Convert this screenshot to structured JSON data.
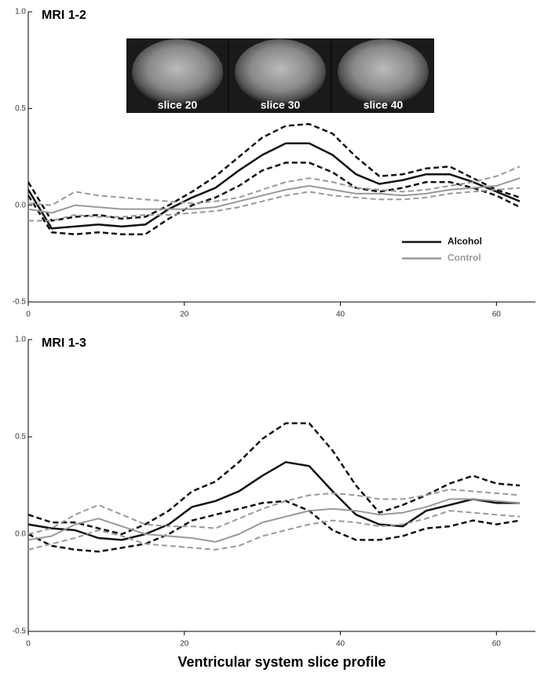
{
  "chart_data": [
    {
      "type": "line",
      "title": "MRI 1-2",
      "image_labels": [
        "slice 20",
        "slice 30",
        "slice 40"
      ],
      "x": [
        0,
        3,
        6,
        9,
        12,
        15,
        18,
        21,
        24,
        27,
        30,
        33,
        36,
        39,
        42,
        45,
        48,
        51,
        54,
        57,
        60,
        63
      ],
      "xlim": [
        0,
        65
      ],
      "xticks": [
        0,
        20,
        40,
        60
      ],
      "ylim": [
        -0.5,
        1.0
      ],
      "yticks": [
        -0.5,
        {
          "value": 0,
          "label": "0.0"
        },
        0.5,
        {
          "value": 1,
          "label": "1.0"
        }
      ],
      "legend": "right",
      "series": [
        {
          "name": "Alcohol",
          "color": "#111111",
          "values": [
            0.08,
            -0.12,
            -0.11,
            -0.1,
            -0.11,
            -0.1,
            -0.02,
            0.04,
            0.09,
            0.18,
            0.26,
            0.32,
            0.32,
            0.26,
            0.16,
            0.11,
            0.13,
            0.16,
            0.16,
            0.12,
            0.07,
            0.02
          ],
          "upper": [
            0.12,
            -0.08,
            -0.06,
            -0.05,
            -0.07,
            -0.06,
            0.0,
            0.07,
            0.15,
            0.25,
            0.35,
            0.41,
            0.42,
            0.37,
            0.25,
            0.15,
            0.16,
            0.19,
            0.2,
            0.14,
            0.08,
            0.04
          ],
          "lower": [
            0.05,
            -0.14,
            -0.15,
            -0.14,
            -0.15,
            -0.15,
            -0.07,
            0.0,
            0.04,
            0.1,
            0.18,
            0.22,
            0.22,
            0.17,
            0.09,
            0.07,
            0.09,
            0.12,
            0.12,
            0.09,
            0.05,
            -0.01
          ]
        },
        {
          "name": "Control",
          "color": "#999999",
          "values": [
            -0.02,
            -0.04,
            0.0,
            -0.01,
            -0.02,
            -0.02,
            -0.02,
            -0.02,
            -0.01,
            0.02,
            0.05,
            0.08,
            0.1,
            0.08,
            0.06,
            0.06,
            0.05,
            0.06,
            0.08,
            0.09,
            0.1,
            0.14
          ],
          "upper": [
            0.01,
            0.0,
            0.07,
            0.05,
            0.04,
            0.03,
            0.02,
            0.01,
            0.02,
            0.04,
            0.08,
            0.12,
            0.14,
            0.12,
            0.09,
            0.08,
            0.07,
            0.08,
            0.1,
            0.12,
            0.15,
            0.2
          ],
          "lower": [
            -0.08,
            -0.08,
            -0.05,
            -0.06,
            -0.06,
            -0.05,
            -0.05,
            -0.04,
            -0.03,
            -0.01,
            0.02,
            0.05,
            0.07,
            0.05,
            0.04,
            0.03,
            0.03,
            0.04,
            0.06,
            0.07,
            0.08,
            0.09
          ]
        }
      ]
    },
    {
      "type": "line",
      "title": "MRI 1-3",
      "xlabel": "Ventricular system slice profile",
      "x": [
        0,
        3,
        6,
        9,
        12,
        15,
        18,
        21,
        24,
        27,
        30,
        33,
        36,
        39,
        42,
        45,
        48,
        51,
        54,
        57,
        60,
        63
      ],
      "xlim": [
        0,
        65
      ],
      "xticks": [
        0,
        20,
        40,
        60
      ],
      "ylim": [
        -0.5,
        1.0
      ],
      "yticks": [
        -0.5,
        {
          "value": 0,
          "label": "0.0"
        },
        0.5,
        {
          "value": 1,
          "label": "1.0"
        }
      ],
      "series": [
        {
          "color": "#111111",
          "values": [
            0.05,
            0.03,
            0.02,
            -0.02,
            -0.03,
            0.0,
            0.05,
            0.14,
            0.17,
            0.22,
            0.3,
            0.37,
            0.35,
            0.22,
            0.1,
            0.05,
            0.04,
            0.12,
            0.15,
            0.18,
            0.16,
            0.16
          ],
          "upper": [
            0.1,
            0.06,
            0.06,
            0.03,
            0.0,
            0.05,
            0.12,
            0.22,
            0.27,
            0.37,
            0.49,
            0.57,
            0.57,
            0.43,
            0.25,
            0.11,
            0.15,
            0.2,
            0.26,
            0.3,
            0.26,
            0.25
          ],
          "lower": [
            0.0,
            -0.06,
            -0.08,
            -0.09,
            -0.07,
            -0.05,
            0.0,
            0.07,
            0.1,
            0.13,
            0.16,
            0.17,
            0.12,
            0.02,
            -0.03,
            -0.03,
            -0.01,
            0.03,
            0.04,
            0.07,
            0.05,
            0.07
          ]
        },
        {
          "color": "#999999",
          "values": [
            -0.03,
            -0.01,
            0.05,
            0.08,
            0.04,
            0.0,
            -0.01,
            -0.02,
            -0.04,
            0.0,
            0.06,
            0.09,
            0.12,
            0.13,
            0.12,
            0.1,
            0.11,
            0.14,
            0.18,
            0.18,
            0.17,
            0.16
          ],
          "upper": [
            0.0,
            0.03,
            0.1,
            0.15,
            0.1,
            0.05,
            0.04,
            0.04,
            0.03,
            0.08,
            0.13,
            0.17,
            0.2,
            0.21,
            0.2,
            0.18,
            0.18,
            0.2,
            0.23,
            0.22,
            0.21,
            0.2
          ],
          "lower": [
            -0.08,
            -0.05,
            -0.02,
            0.02,
            -0.01,
            -0.05,
            -0.06,
            -0.07,
            -0.08,
            -0.06,
            -0.01,
            0.02,
            0.05,
            0.07,
            0.06,
            0.04,
            0.05,
            0.08,
            0.12,
            0.11,
            0.1,
            0.09
          ]
        }
      ]
    }
  ]
}
